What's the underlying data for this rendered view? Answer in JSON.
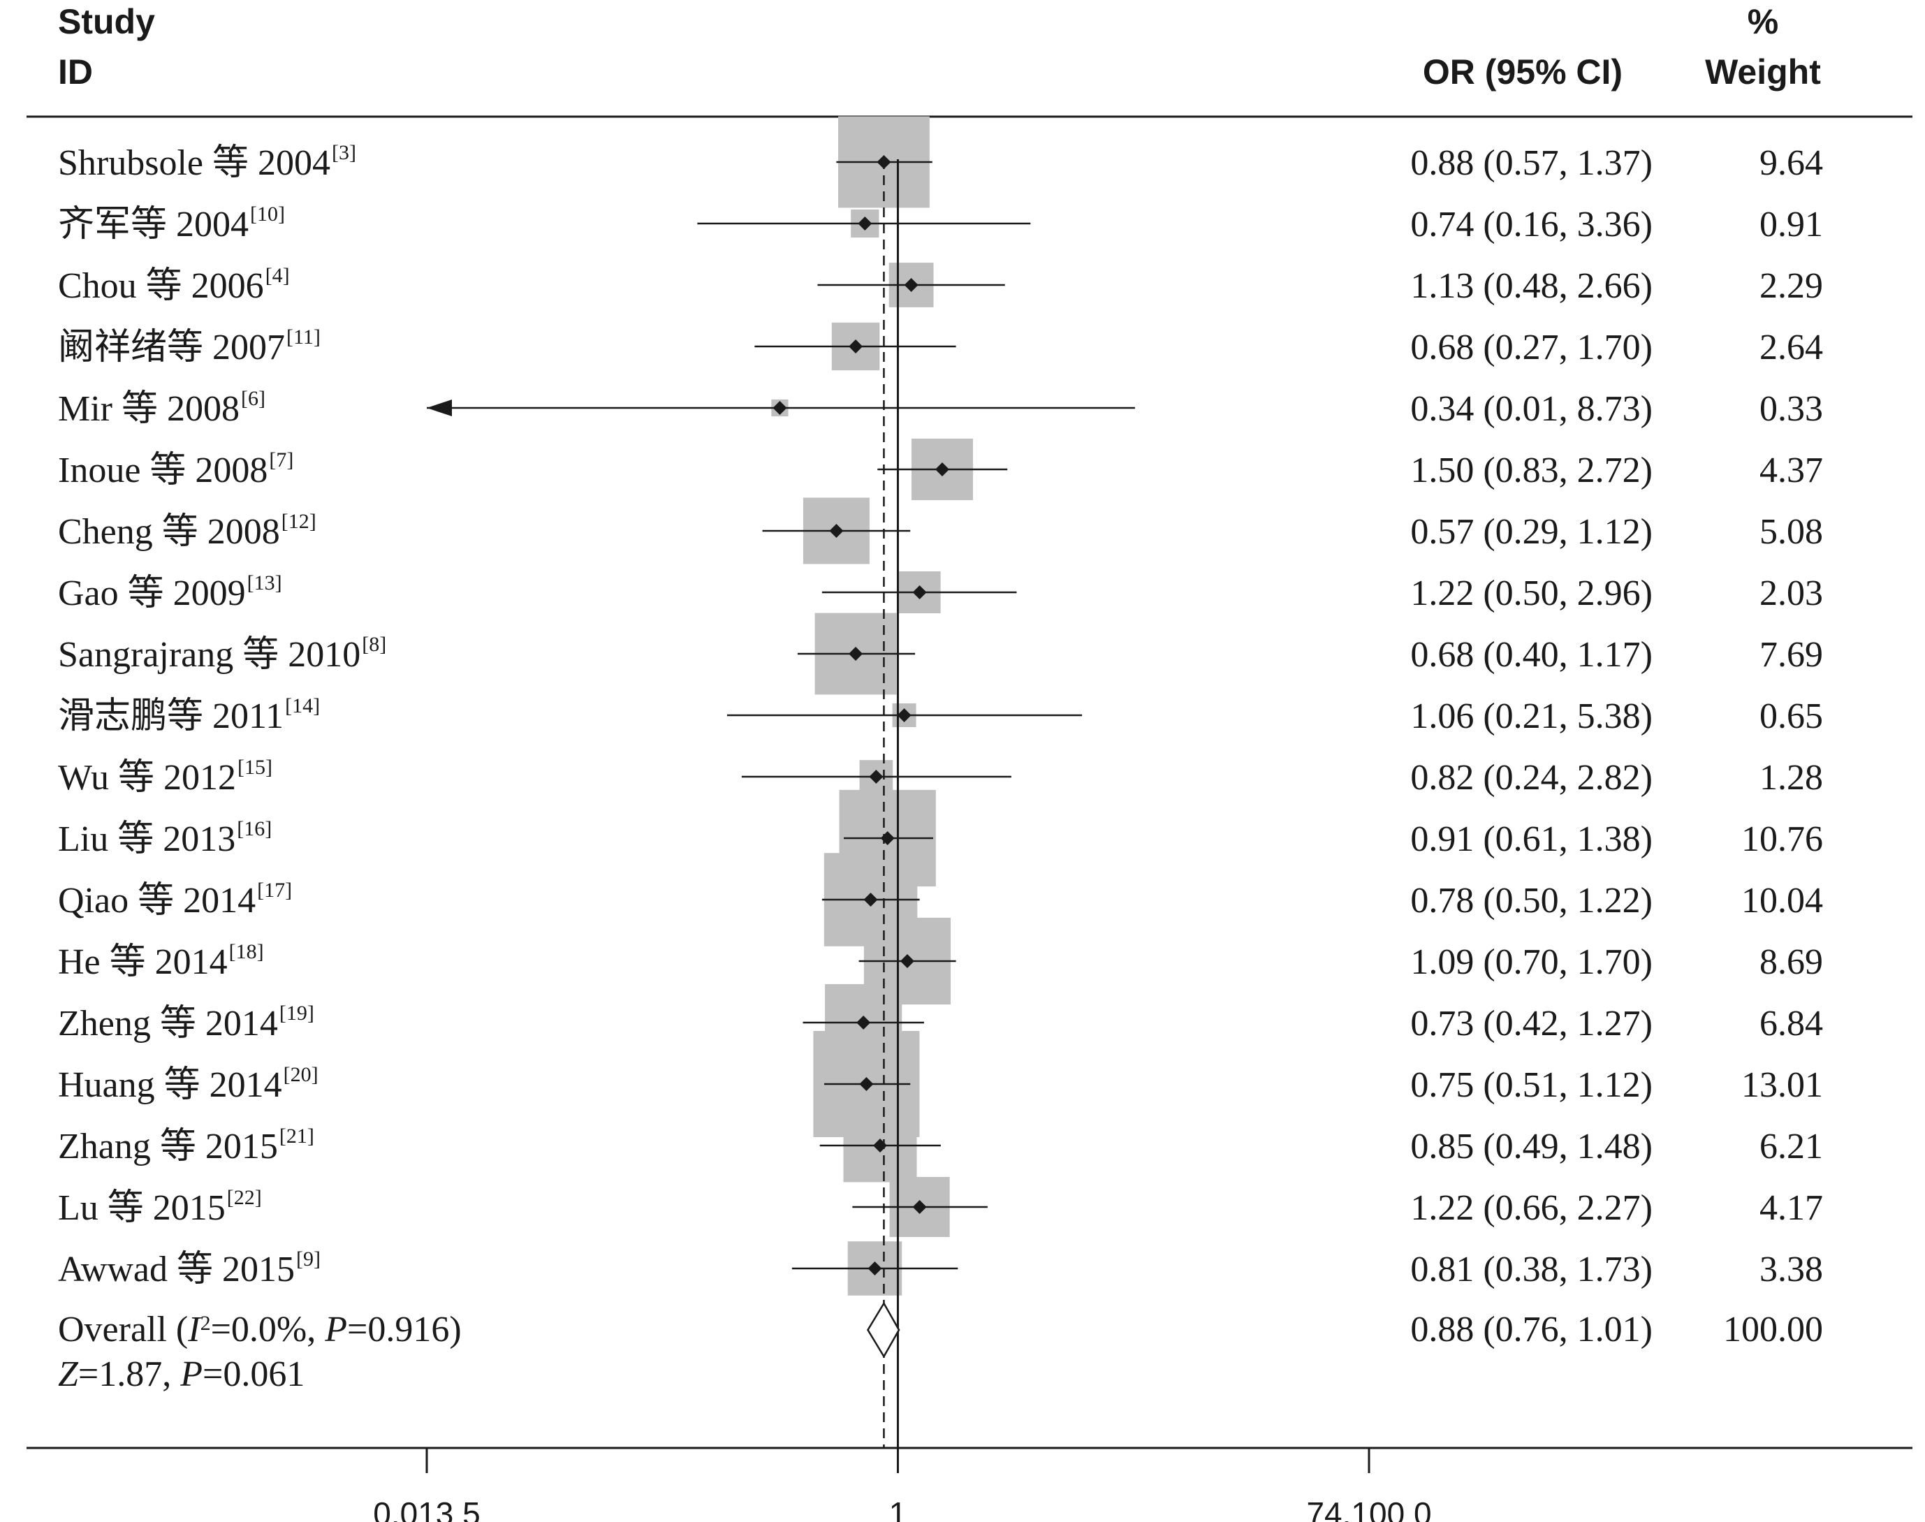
{
  "chart_data": {
    "type": "forest",
    "headers": {
      "study_line1": "Study",
      "study_line2": "ID",
      "or": "OR (95% CI)",
      "weight_line1": "%",
      "weight_line2": "Weight"
    },
    "x_scale": "log",
    "xlim": [
      0.0135,
      74.1
    ],
    "xticks": [
      {
        "value": 0.0135,
        "label": "0.013 5"
      },
      {
        "value": 1,
        "label": "1"
      },
      {
        "value": 74.1,
        "label": "74.100 0"
      }
    ],
    "null_line": 1,
    "studies": [
      {
        "name": "Shrubsole 等 2004",
        "ref": "[3]",
        "or": 0.88,
        "lo": 0.57,
        "hi": 1.37,
        "or_text": "0.88 (0.57, 1.37)",
        "weight": "9.64"
      },
      {
        "name": "齐军等 2004",
        "ref": "[10]",
        "or": 0.74,
        "lo": 0.16,
        "hi": 3.36,
        "or_text": "0.74 (0.16, 3.36)",
        "weight": "0.91"
      },
      {
        "name": "Chou 等 2006",
        "ref": "[4]",
        "or": 1.13,
        "lo": 0.48,
        "hi": 2.66,
        "or_text": "1.13 (0.48, 2.66)",
        "weight": "2.29"
      },
      {
        "name": "阚祥绪等 2007",
        "ref": "[11]",
        "or": 0.68,
        "lo": 0.27,
        "hi": 1.7,
        "or_text": "0.68 (0.27, 1.70)",
        "weight": "2.64"
      },
      {
        "name": "Mir 等 2008",
        "ref": "[6]",
        "or": 0.34,
        "lo": 0.01,
        "hi": 8.73,
        "or_text": "0.34 (0.01, 8.73)",
        "weight": "0.33"
      },
      {
        "name": "Inoue 等 2008",
        "ref": "[7]",
        "or": 1.5,
        "lo": 0.83,
        "hi": 2.72,
        "or_text": "1.50 (0.83, 2.72)",
        "weight": "4.37"
      },
      {
        "name": "Cheng 等 2008",
        "ref": "[12]",
        "or": 0.57,
        "lo": 0.29,
        "hi": 1.12,
        "or_text": "0.57 (0.29, 1.12)",
        "weight": "5.08"
      },
      {
        "name": "Gao 等 2009",
        "ref": "[13]",
        "or": 1.22,
        "lo": 0.5,
        "hi": 2.96,
        "or_text": "1.22 (0.50, 2.96)",
        "weight": "2.03"
      },
      {
        "name": "Sangrajrang 等 2010",
        "ref": "[8]",
        "or": 0.68,
        "lo": 0.4,
        "hi": 1.17,
        "or_text": "0.68 (0.40, 1.17)",
        "weight": "7.69"
      },
      {
        "name": "滑志鹏等 2011",
        "ref": "[14]",
        "or": 1.06,
        "lo": 0.21,
        "hi": 5.38,
        "or_text": "1.06 (0.21, 5.38)",
        "weight": "0.65"
      },
      {
        "name": "Wu 等 2012",
        "ref": "[15]",
        "or": 0.82,
        "lo": 0.24,
        "hi": 2.82,
        "or_text": "0.82 (0.24, 2.82)",
        "weight": "1.28"
      },
      {
        "name": "Liu 等 2013",
        "ref": "[16]",
        "or": 0.91,
        "lo": 0.61,
        "hi": 1.38,
        "or_text": "0.91 (0.61, 1.38)",
        "weight": "10.76"
      },
      {
        "name": "Qiao 等 2014",
        "ref": "[17]",
        "or": 0.78,
        "lo": 0.5,
        "hi": 1.22,
        "or_text": "0.78 (0.50, 1.22)",
        "weight": "10.04"
      },
      {
        "name": "He 等 2014",
        "ref": "[18]",
        "or": 1.09,
        "lo": 0.7,
        "hi": 1.7,
        "or_text": "1.09 (0.70, 1.70)",
        "weight": "8.69"
      },
      {
        "name": "Zheng 等 2014",
        "ref": "[19]",
        "or": 0.73,
        "lo": 0.42,
        "hi": 1.27,
        "or_text": "0.73 (0.42, 1.27)",
        "weight": "6.84"
      },
      {
        "name": "Huang 等 2014",
        "ref": "[20]",
        "or": 0.75,
        "lo": 0.51,
        "hi": 1.12,
        "or_text": "0.75 (0.51, 1.12)",
        "weight": "13.01"
      },
      {
        "name": "Zhang 等 2015",
        "ref": "[21]",
        "or": 0.85,
        "lo": 0.49,
        "hi": 1.48,
        "or_text": "0.85 (0.49, 1.48)",
        "weight": "6.21"
      },
      {
        "name": "Lu 等 2015",
        "ref": "[22]",
        "or": 1.22,
        "lo": 0.66,
        "hi": 2.27,
        "or_text": "1.22 (0.66, 2.27)",
        "weight": "4.17"
      },
      {
        "name": "Awwad 等 2015",
        "ref": "[9]",
        "or": 0.81,
        "lo": 0.38,
        "hi": 1.73,
        "or_text": "0.81 (0.38, 1.73)",
        "weight": "3.38"
      }
    ],
    "overall": {
      "line1_text": "Overall (",
      "i2_symbol": "I",
      "i2_exp": "2",
      "line1_rest": "=0.0%, ",
      "p1_symbol": "P",
      "p1_value": "=0.916)",
      "z_symbol": "Z",
      "z_value": "=1.87, ",
      "p2_symbol": "P",
      "p2_value": "=0.061",
      "or": 0.88,
      "lo": 0.76,
      "hi": 1.01,
      "or_text": "0.88 (0.76, 1.01)",
      "weight": "100.00"
    }
  }
}
